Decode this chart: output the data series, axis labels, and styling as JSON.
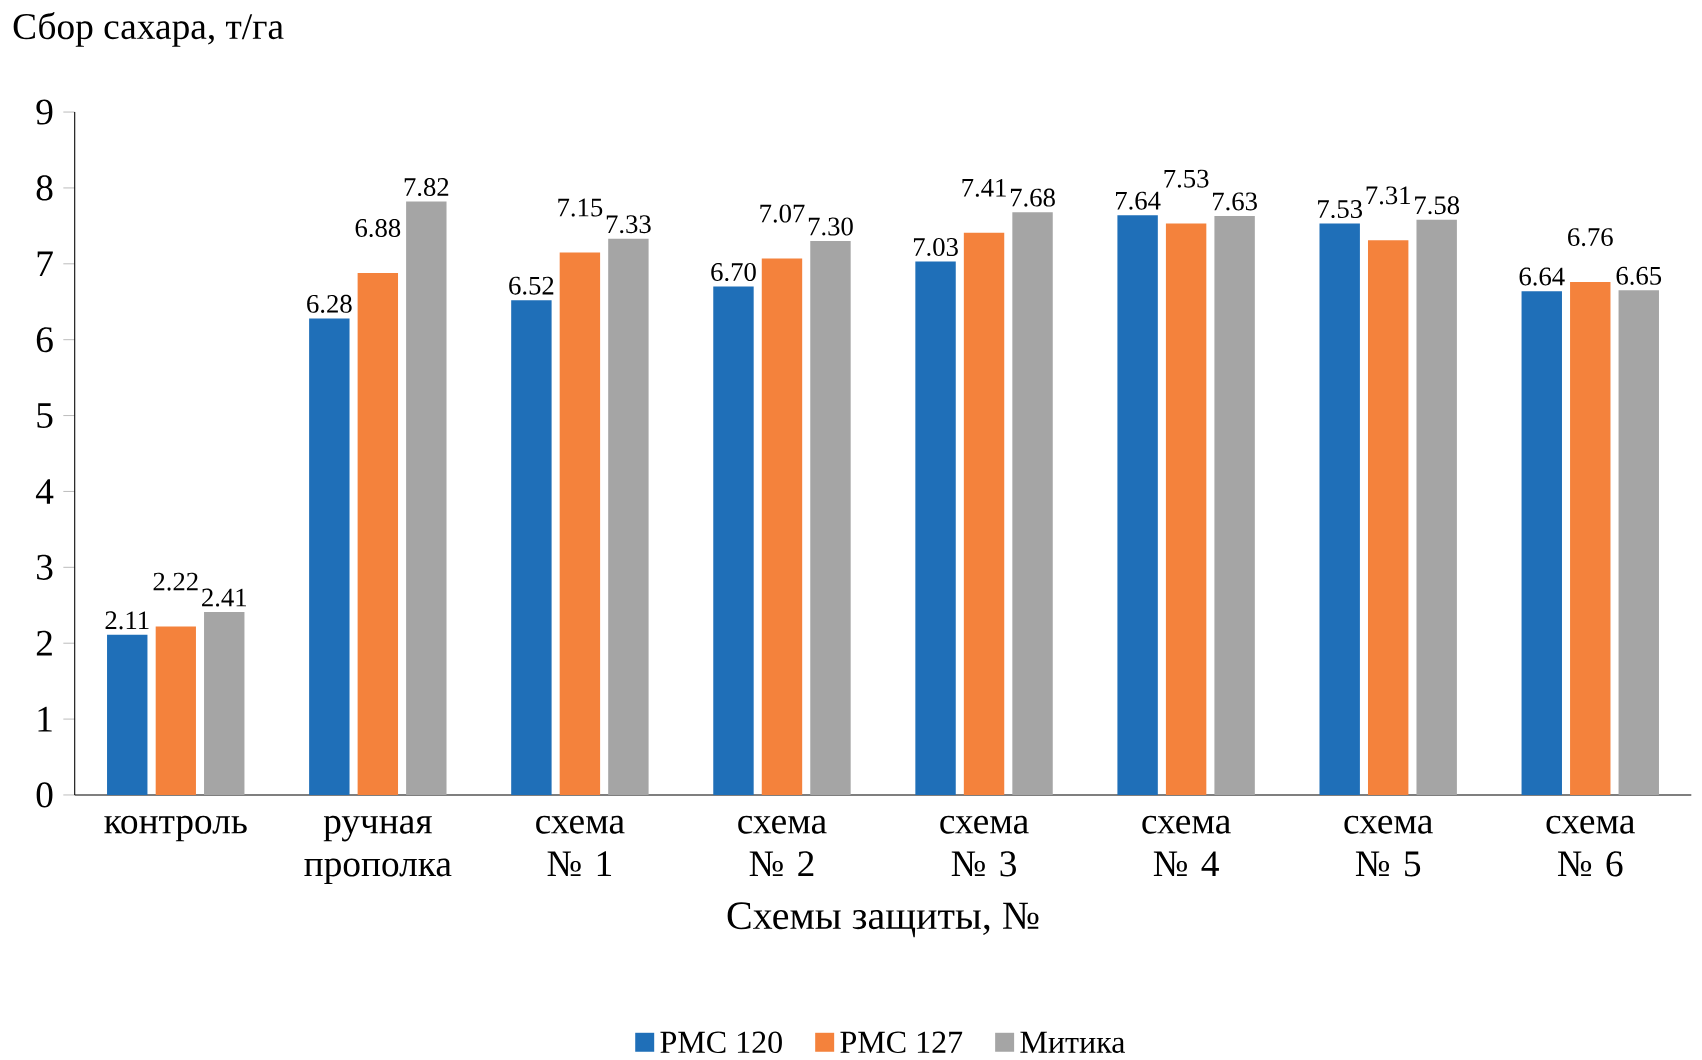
{
  "chart_data": {
    "type": "bar",
    "ylabel": "Сбор сахара, т/га",
    "xlabel": "Схемы защиты, №",
    "categories": [
      "контроль",
      "ручная прополка",
      "схема № 1",
      "схема № 2",
      "схема № 3",
      "схема № 4",
      "схема № 5",
      "схема № 6"
    ],
    "series": [
      {
        "name": "РМС 120",
        "color": "#1f6fb8",
        "values": [
          2.11,
          6.28,
          6.52,
          6.7,
          7.03,
          7.64,
          7.53,
          6.64
        ],
        "value_labels": [
          "2.11",
          "6.28",
          "6.52",
          "6.70",
          "7.03",
          "7.64",
          "7.53",
          "6.64"
        ]
      },
      {
        "name": "РМС 127",
        "color": "#f4823c",
        "values": [
          2.22,
          6.88,
          7.15,
          7.07,
          7.41,
          7.53,
          7.31,
          6.76
        ],
        "value_labels": [
          "2.22",
          "6.88",
          "7.15",
          "7.07",
          "7.41",
          "7.53",
          "7.31",
          "6.76"
        ]
      },
      {
        "name": "Митика",
        "color": "#a5a5a5",
        "values": [
          2.41,
          7.82,
          7.33,
          7.3,
          7.68,
          7.63,
          7.58,
          6.65
        ],
        "value_labels": [
          "2.41",
          "7.82",
          "7.33",
          "7.30",
          "7.68",
          "7.63",
          "7.58",
          "6.65"
        ]
      }
    ],
    "ylim": [
      0,
      9
    ],
    "yticks": [
      0,
      1,
      2,
      3,
      4,
      5,
      6,
      7,
      8,
      9
    ],
    "grid": false,
    "legend": "bottom"
  }
}
